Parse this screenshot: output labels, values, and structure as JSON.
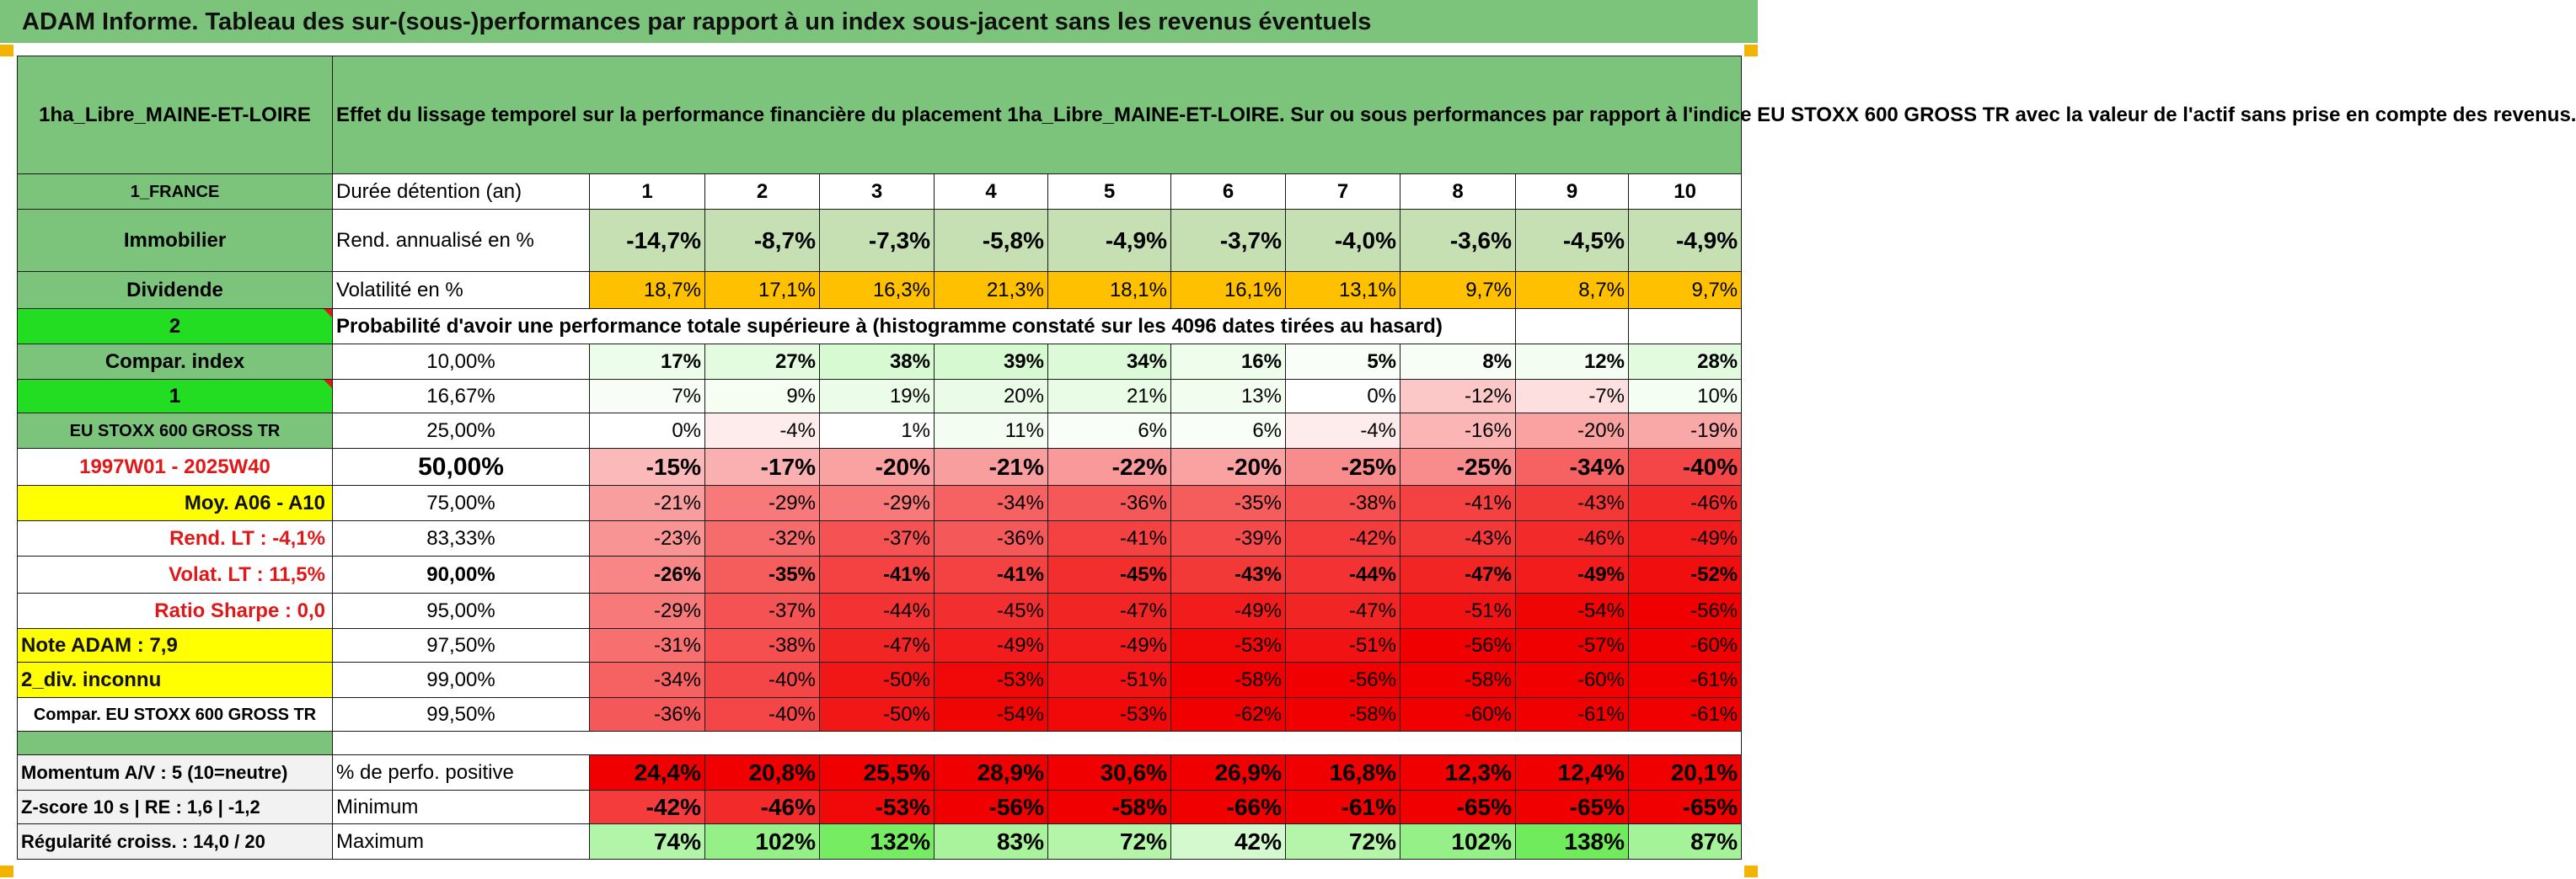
{
  "banner_title": "ADAM Informe. Tableau des sur-(sous-)performances par rapport à un index sous-jacent sans les revenus éventuels",
  "fund_name": "1ha_Libre_MAINE-ET-LOIRE",
  "description": "Effet du lissage temporel sur la performance financière du placement 1ha_Libre_MAINE-ET-LOIRE. Sur ou sous performances par rapport à l'indice EU STOXX 600 GROSS TR avec la valeur de l'actif sans prise en compte des revenus.",
  "labels": {
    "country": "1_FRANCE",
    "asset_class": "Immobilier",
    "income": "Dividende",
    "num2": "2",
    "compar_index": "Compar. index",
    "num1": "1",
    "index_name": "EU STOXX 600 GROSS TR",
    "period": "1997W01 - 2025W40",
    "moy": "Moy. A06 - A10",
    "rend_lt": "Rend. LT :    -4,1%",
    "volat_lt": "Volat. LT :    11,5%",
    "sharpe": "Ratio Sharpe :    0,0",
    "note_adam": "Note ADAM : 7,9",
    "div_inconnu": "2_div. inconnu",
    "compar_eu": "Compar. EU STOXX 600 GROSS TR",
    "momentum": "Momentum A/V : 5 (10=neutre)",
    "zscore": "Z-score 10 s | RE : 1,6 | -1,2",
    "regularite": "Régularité croiss. : 14,0 / 20"
  },
  "durations_label": "Durée détention (an)",
  "durations": [
    "1",
    "2",
    "3",
    "4",
    "5",
    "6",
    "7",
    "8",
    "9",
    "10"
  ],
  "rend_label": "Rend. annualisé en %",
  "rend": [
    "-14,7%",
    "-8,7%",
    "-7,3%",
    "-5,8%",
    "-4,9%",
    "-3,7%",
    "-4,0%",
    "-3,6%",
    "-4,5%",
    "-4,9%"
  ],
  "vol_label": "Volatilité en %",
  "vol": [
    "18,7%",
    "17,1%",
    "16,3%",
    "21,3%",
    "18,1%",
    "16,1%",
    "13,1%",
    "9,7%",
    "8,7%",
    "9,7%"
  ],
  "prob_title": "Probabilité d'avoir une performance totale supérieure à (histogramme constaté sur les 4096 dates tirées au hasard)",
  "quantiles": [
    {
      "p": "10,00%",
      "v": [
        "17%",
        "27%",
        "38%",
        "39%",
        "34%",
        "16%",
        "5%",
        "8%",
        "12%",
        "28%"
      ]
    },
    {
      "p": "16,67%",
      "v": [
        "7%",
        "9%",
        "19%",
        "20%",
        "21%",
        "13%",
        "0%",
        "-12%",
        "-7%",
        "10%"
      ]
    },
    {
      "p": "25,00%",
      "v": [
        "0%",
        "-4%",
        "1%",
        "11%",
        "6%",
        "6%",
        "-4%",
        "-16%",
        "-20%",
        "-19%"
      ]
    },
    {
      "p": "50,00%",
      "v": [
        "-15%",
        "-17%",
        "-20%",
        "-21%",
        "-22%",
        "-20%",
        "-25%",
        "-25%",
        "-34%",
        "-40%"
      ]
    },
    {
      "p": "75,00%",
      "v": [
        "-21%",
        "-29%",
        "-29%",
        "-34%",
        "-36%",
        "-35%",
        "-38%",
        "-41%",
        "-43%",
        "-46%"
      ]
    },
    {
      "p": "83,33%",
      "v": [
        "-23%",
        "-32%",
        "-37%",
        "-36%",
        "-41%",
        "-39%",
        "-42%",
        "-43%",
        "-46%",
        "-49%"
      ]
    },
    {
      "p": "90,00%",
      "v": [
        "-26%",
        "-35%",
        "-41%",
        "-41%",
        "-45%",
        "-43%",
        "-44%",
        "-47%",
        "-49%",
        "-52%"
      ]
    },
    {
      "p": "95,00%",
      "v": [
        "-29%",
        "-37%",
        "-44%",
        "-45%",
        "-47%",
        "-49%",
        "-47%",
        "-51%",
        "-54%",
        "-56%"
      ]
    },
    {
      "p": "97,50%",
      "v": [
        "-31%",
        "-38%",
        "-47%",
        "-49%",
        "-49%",
        "-53%",
        "-51%",
        "-56%",
        "-57%",
        "-60%"
      ]
    },
    {
      "p": "99,00%",
      "v": [
        "-34%",
        "-40%",
        "-50%",
        "-53%",
        "-51%",
        "-58%",
        "-56%",
        "-58%",
        "-60%",
        "-61%"
      ]
    },
    {
      "p": "99,50%",
      "v": [
        "-36%",
        "-40%",
        "-50%",
        "-54%",
        "-53%",
        "-62%",
        "-58%",
        "-60%",
        "-61%",
        "-61%"
      ]
    }
  ],
  "stats": [
    {
      "label": "% de perfo. positive",
      "v": [
        "24,4%",
        "20,8%",
        "25,5%",
        "28,9%",
        "30,6%",
        "26,9%",
        "16,8%",
        "12,3%",
        "12,4%",
        "20,1%"
      ]
    },
    {
      "label": "Minimum",
      "v": [
        "-42%",
        "-46%",
        "-53%",
        "-56%",
        "-58%",
        "-66%",
        "-61%",
        "-65%",
        "-65%",
        "-65%"
      ]
    },
    {
      "label": "Maximum",
      "v": [
        "74%",
        "102%",
        "132%",
        "83%",
        "72%",
        "42%",
        "72%",
        "102%",
        "138%",
        "87%"
      ]
    }
  ],
  "colors": {
    "header_green": "#7cc47c",
    "bright_green": "#22dd22",
    "orange": "#ffc000",
    "yellow": "#ffff00",
    "red_text": "#e01818",
    "rend_fill": "#c6e0b4"
  }
}
